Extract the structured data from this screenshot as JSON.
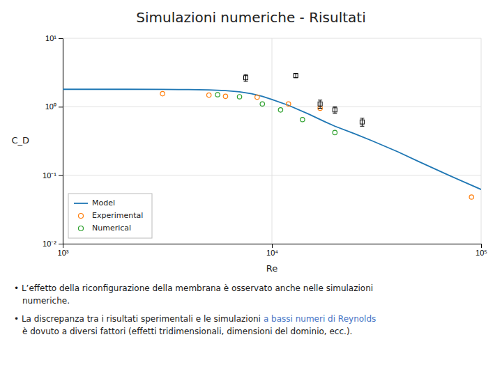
{
  "chart_data": {
    "type": "line",
    "title": "Simulazioni numeriche - Risultati",
    "xlabel": "Re",
    "ylabel": "C_D",
    "log": true,
    "grid": true,
    "legend": "lower left",
    "xlim": [
      1000,
      100000
    ],
    "ylim": [
      0.01,
      10
    ],
    "xticks": [
      {
        "value": 1000,
        "label": "10³"
      },
      {
        "value": 10000,
        "label": "10⁴"
      },
      {
        "value": 100000,
        "label": "10⁵"
      }
    ],
    "yticks": [
      {
        "value": 0.01,
        "label": "10⁻²"
      },
      {
        "value": 0.1,
        "label": "10⁻¹"
      },
      {
        "value": 1,
        "label": "10⁰"
      },
      {
        "value": 10,
        "label": "10¹"
      }
    ],
    "series": [
      {
        "name": "Model",
        "type": "line",
        "x": [
          1000,
          1500,
          2000,
          3000,
          4000,
          5000,
          6000,
          7000,
          8000,
          9000,
          10000,
          12000,
          15000,
          18000,
          20000,
          25000,
          30000,
          40000,
          50000,
          70000,
          100000
        ],
        "values": [
          1.8,
          1.8,
          1.8,
          1.79,
          1.78,
          1.76,
          1.72,
          1.65,
          1.55,
          1.42,
          1.28,
          1.05,
          0.78,
          0.6,
          0.52,
          0.4,
          0.32,
          0.22,
          0.16,
          0.1,
          0.062
        ]
      },
      {
        "name": "Experimental",
        "type": "scatter",
        "marker": "circle",
        "x": [
          3000,
          5000,
          6000,
          8500,
          12000,
          17000,
          90000
        ],
        "values": [
          1.55,
          1.48,
          1.42,
          1.38,
          1.1,
          0.95,
          0.048
        ]
      },
      {
        "name": "Numerical",
        "type": "scatter",
        "marker": "circle",
        "x": [
          5500,
          7000,
          9000,
          11000,
          14000,
          20000
        ],
        "values": [
          1.5,
          1.4,
          1.1,
          0.9,
          0.65,
          0.42
        ]
      },
      {
        "type": "scatter",
        "marker": "square",
        "color": "#000000",
        "x": [
          7500,
          13000,
          17000
        ],
        "values": [
          2.65,
          2.85,
          1.1
        ],
        "errors": [
          0.3,
          0.2,
          0.15
        ]
      },
      {
        "type": "scatter",
        "marker": "square",
        "color": "#000000",
        "x": [
          20000,
          27000
        ],
        "values": [
          0.9,
          0.6
        ],
        "errors": [
          0.1,
          0.08
        ]
      }
    ],
    "annotations": [
      {
        "text": "• L’effetto della riconfigurazione della membrana è osservato anche nelle simulazioni"
      },
      {
        "text": "numeriche."
      },
      {
        "text": "• La discrepanza tra i risultati sperimentali e le simulazioni"
      },
      {
        "text": "a bassi numeri di Reynolds",
        "color": "#4472c4"
      },
      {
        "text": "è dovuto a diversi fattori (effetti tridimensionali, dimensioni del dominio, ecc.)."
      }
    ]
  }
}
